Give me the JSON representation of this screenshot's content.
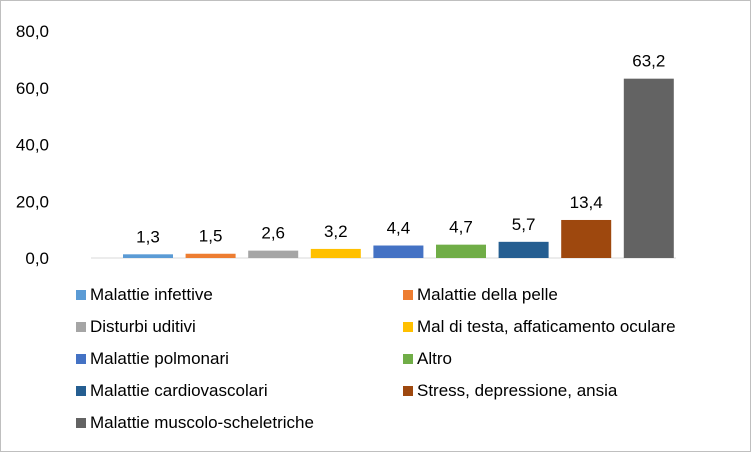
{
  "chart_data": {
    "type": "bar",
    "title": "",
    "xlabel": "",
    "ylabel": "",
    "ylim": [
      0,
      80
    ],
    "yticks": [
      "0,0",
      "20,0",
      "40,0",
      "60,0",
      "80,0"
    ],
    "grid": false,
    "legend_position": "bottom",
    "series": [
      {
        "name": "Malattie infettive",
        "value": 1.3,
        "label": "1,3",
        "color": "#5b9bd5"
      },
      {
        "name": "Malattie della pelle",
        "value": 1.5,
        "label": "1,5",
        "color": "#ed7d31"
      },
      {
        "name": "Disturbi uditivi",
        "value": 2.6,
        "label": "2,6",
        "color": "#a5a5a5"
      },
      {
        "name": "Mal di testa, affaticamento oculare",
        "value": 3.2,
        "label": "3,2",
        "color": "#ffc000"
      },
      {
        "name": "Malattie polmonari",
        "value": 4.4,
        "label": "4,4",
        "color": "#4472c4"
      },
      {
        "name": "Altro",
        "value": 4.7,
        "label": "4,7",
        "color": "#70ad47"
      },
      {
        "name": "Malattie cardiovascolari",
        "value": 5.7,
        "label": "5,7",
        "color": "#255e91"
      },
      {
        "name": "Stress, depressione, ansia",
        "value": 13.4,
        "label": "13,4",
        "color": "#9e480e"
      },
      {
        "name": "Malattie muscolo-scheletriche",
        "value": 63.2,
        "label": "63,2",
        "color": "#636363"
      }
    ]
  }
}
